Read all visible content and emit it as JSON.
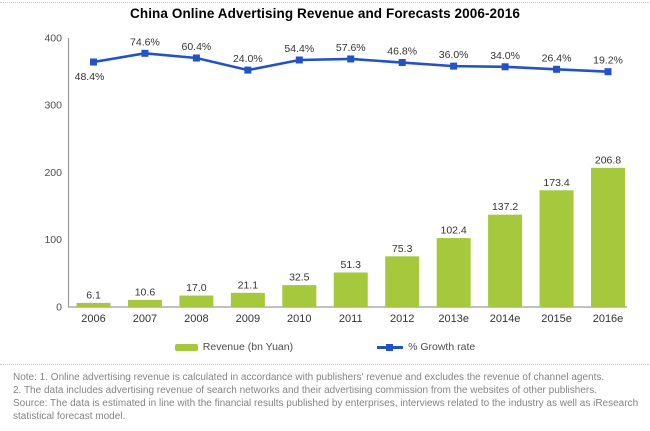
{
  "title": "China Online Advertising Revenue and Forecasts 2006-2016",
  "chart_data": {
    "type": "bar",
    "subtype": "bar-line-combo",
    "title": "China Online Advertising Revenue and Forecasts 2006-2016",
    "categories": [
      "2006",
      "2007",
      "2008",
      "2009",
      "2010",
      "2011",
      "2012",
      "2013e",
      "2014e",
      "2015e",
      "2016e"
    ],
    "series": [
      {
        "name": "Revenue (bn Yuan)",
        "type": "bar",
        "axis": "left",
        "values": [
          6.1,
          10.6,
          17.0,
          21.1,
          32.5,
          51.3,
          75.3,
          102.4,
          137.2,
          173.4,
          206.8
        ]
      },
      {
        "name": "% Growth rate",
        "type": "line",
        "axis": "right-hidden",
        "unit": "%",
        "values": [
          48.4,
          74.6,
          60.4,
          24.0,
          54.4,
          57.6,
          46.8,
          36.0,
          34.0,
          26.4,
          19.2
        ]
      }
    ],
    "xlabel": "",
    "ylabel": "",
    "yticks": [
      0,
      100,
      200,
      300,
      400
    ],
    "ylim": [
      0,
      400
    ],
    "grid": false,
    "legend_position": "bottom",
    "data_labels": true
  },
  "legend": {
    "revenue_label": "Revenue (bn Yuan)",
    "growth_label": "% Growth rate"
  },
  "notes": {
    "note1": "Note: 1. Online advertising revenue is calculated in accordance with publishers' revenue and excludes the revenue of channel agents.",
    "note2": "2. The data includes advertising revenue of search networks and their advertising commission from the websites of other publishers.",
    "source": "Source: The data is estimated in line with the financial results published by enterprises, interviews related to the industry as well as iResearch statistical forecast model."
  },
  "colors": {
    "bar_green": "#A5C83C",
    "line_blue": "#2351C8",
    "axis_gray": "#9b9b9b",
    "label_dark": "#333333",
    "tick_text": "#4d4d4d",
    "note_gray": "#848484"
  }
}
